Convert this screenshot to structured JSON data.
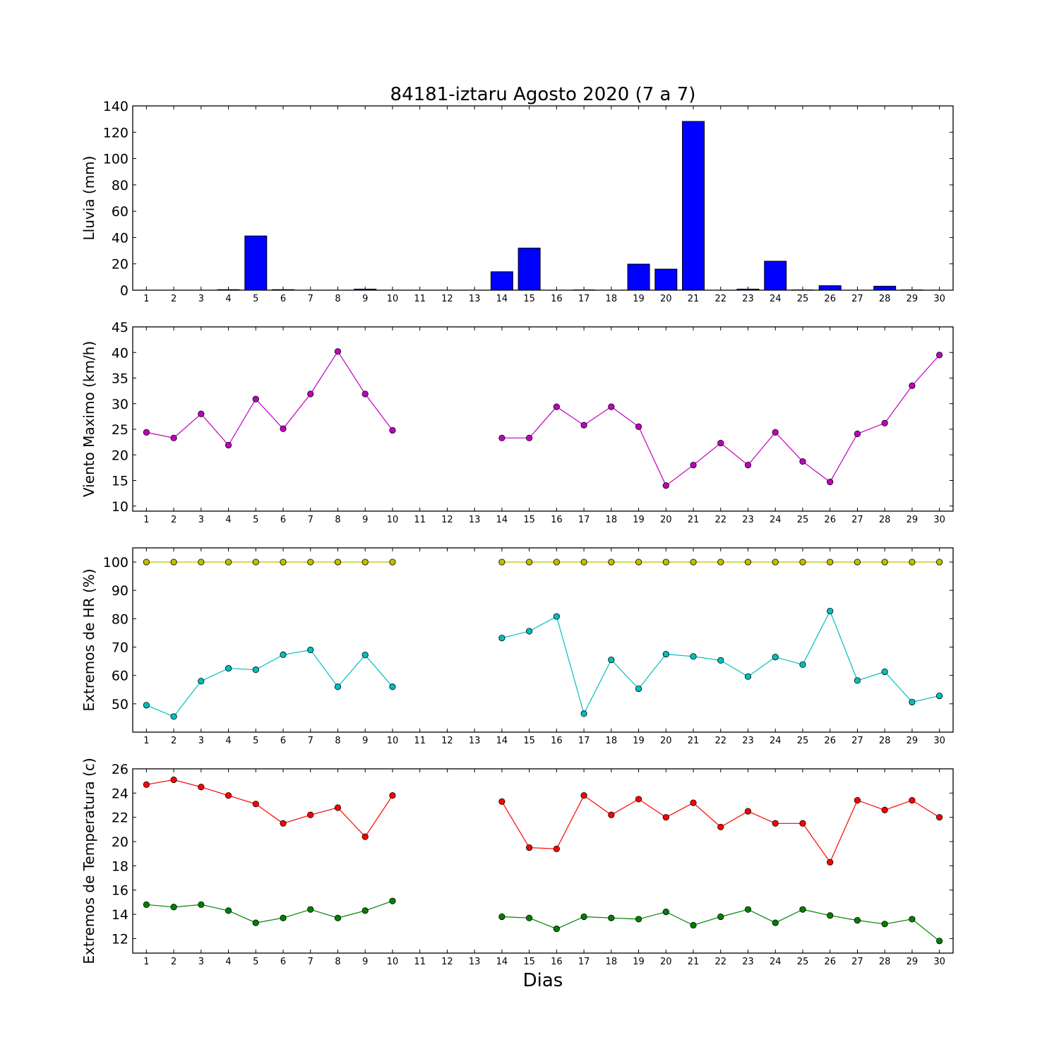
{
  "chart_data": {
    "title": "84181-iztaru Agosto 2020  (7 a 7)",
    "xlabel": "Dias",
    "days": [
      1,
      2,
      3,
      4,
      5,
      6,
      7,
      8,
      9,
      10,
      11,
      12,
      13,
      14,
      15,
      16,
      17,
      18,
      19,
      20,
      21,
      22,
      23,
      24,
      25,
      26,
      27,
      28,
      29,
      30
    ],
    "panels": [
      {
        "type": "bar",
        "ylabel": "Lluvia (mm)",
        "ylim": [
          0,
          140
        ],
        "yticks": [
          0,
          20,
          40,
          60,
          80,
          100,
          120,
          140
        ],
        "grid": false,
        "series": [
          {
            "color": "#0000ff",
            "values": [
              0,
              0,
              0,
              0.4,
              41.2,
              0.4,
              0,
              0,
              0.8,
              0,
              0,
              0,
              0,
              14,
              32,
              0,
              0.2,
              0,
              19.8,
              16,
              128.2,
              0,
              0.8,
              22,
              0.2,
              3.4,
              0,
              3,
              0.2,
              0
            ]
          }
        ]
      },
      {
        "type": "line",
        "ylabel": "Viento Maximo (km/h)",
        "ylim": [
          9,
          45
        ],
        "yticks": [
          10,
          15,
          20,
          25,
          30,
          35,
          40,
          45
        ],
        "grid": false,
        "series": [
          {
            "color": "#bf00bf",
            "values": [
              24.4,
              23.3,
              28.0,
              21.9,
              30.9,
              25.1,
              31.9,
              40.2,
              31.9,
              24.8,
              null,
              null,
              null,
              23.3,
              23.3,
              29.4,
              25.8,
              29.4,
              25.5,
              14.0,
              18.0,
              22.3,
              18.0,
              24.4,
              18.7,
              14.7,
              24.1,
              26.2,
              33.5,
              39.5
            ]
          }
        ]
      },
      {
        "type": "line",
        "ylabel": "Extremos de HR (%)",
        "ylim": [
          40,
          105
        ],
        "yticks": [
          50,
          60,
          70,
          80,
          90,
          100
        ],
        "grid": false,
        "series": [
          {
            "color": "#bfbf00",
            "values": [
              100,
              100,
              100,
              100,
              100,
              100,
              100,
              100,
              100,
              100,
              null,
              null,
              null,
              100,
              100,
              100,
              100,
              100,
              100,
              100,
              100,
              100,
              100,
              100,
              100,
              100,
              100,
              100,
              100,
              100
            ]
          },
          {
            "color": "#00bfbf",
            "values": [
              49.5,
              45.5,
              58.0,
              62.5,
              62.0,
              67.3,
              69.0,
              56.0,
              67.2,
              56.0,
              null,
              null,
              null,
              73.2,
              75.6,
              80.8,
              46.5,
              65.5,
              55.3,
              67.5,
              66.7,
              65.3,
              59.6,
              66.5,
              63.8,
              82.7,
              58.2,
              61.3,
              50.6,
              52.8
            ]
          }
        ]
      },
      {
        "type": "line",
        "ylabel": "Extremos de Temperatura (c)",
        "ylim": [
          10.8,
          26
        ],
        "yticks": [
          12,
          14,
          16,
          18,
          20,
          22,
          24,
          26
        ],
        "grid": false,
        "series": [
          {
            "color": "#ff0000",
            "values": [
              24.7,
              25.1,
              24.5,
              23.8,
              23.1,
              21.5,
              22.2,
              22.8,
              20.4,
              23.8,
              null,
              null,
              null,
              23.3,
              19.5,
              19.4,
              23.8,
              22.2,
              23.5,
              22.0,
              23.2,
              21.2,
              22.5,
              21.5,
              21.5,
              18.3,
              23.4,
              22.6,
              23.4,
              22.0
            ]
          },
          {
            "color": "#008000",
            "values": [
              14.8,
              14.6,
              14.8,
              14.3,
              13.3,
              13.7,
              14.4,
              13.7,
              14.3,
              15.1,
              null,
              null,
              null,
              13.8,
              13.7,
              12.8,
              13.8,
              13.7,
              13.6,
              14.2,
              13.1,
              13.8,
              14.4,
              13.3,
              14.4,
              13.9,
              13.5,
              13.2,
              13.6,
              11.8
            ]
          }
        ]
      }
    ]
  }
}
